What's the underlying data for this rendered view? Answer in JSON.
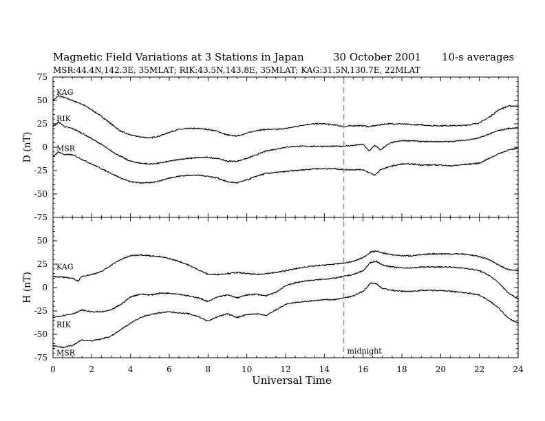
{
  "chart_data": {
    "type": "line",
    "title": "Magnetic Field Variations at 3 Stations in Japan",
    "date": "30 October 2001",
    "averaging": "10-s averages",
    "subtitle": "MSR:44.4N,142.3E, 35MLAT;  RIK:43.5N,143.8E, 35MLAT;  KAG:31.5N,130.7E, 22MLAT",
    "xlabel": "Universal Time",
    "xlim": [
      0,
      24
    ],
    "x_ticks": [
      0,
      2,
      4,
      6,
      8,
      10,
      12,
      14,
      16,
      18,
      20,
      22,
      24
    ],
    "midnight_line": {
      "x": 15,
      "label": "midnight"
    },
    "panels": [
      {
        "id": "D",
        "ylabel": "D (nT)",
        "ylim": [
          -75,
          75
        ],
        "y_ticks": [
          75,
          50,
          25,
          0,
          -25,
          -50,
          -75
        ],
        "series": [
          {
            "name": "KAG",
            "x": [
              0,
              0.3,
              0.6,
              1,
              1.5,
              2,
              2.5,
              3,
              3.5,
              4,
              4.5,
              5,
              5.5,
              6,
              6.5,
              7,
              7.5,
              8,
              8.5,
              9,
              9.5,
              10,
              10.5,
              11,
              11.5,
              12,
              12.5,
              13,
              13.5,
              14,
              14.5,
              15,
              15.5,
              16,
              16.3,
              16.6,
              16.9,
              17.2,
              17.5,
              18,
              18.5,
              19,
              19.5,
              20,
              20.5,
              21,
              21.5,
              22,
              22.5,
              23,
              23.5,
              24
            ],
            "y": [
              50,
              55,
              53,
              50,
              46,
              40,
              33,
              25,
              17,
              13,
              11,
              10,
              12,
              16,
              19,
              20,
              20,
              19,
              17,
              13,
              12,
              15,
              18,
              19,
              19,
              20,
              22,
              24,
              25,
              25,
              24,
              22,
              23,
              23,
              22,
              23,
              24,
              25,
              25,
              25,
              24,
              24,
              23,
              23,
              23,
              23,
              24,
              26,
              32,
              40,
              44,
              44
            ]
          },
          {
            "name": "RIK",
            "x": [
              0,
              0.3,
              0.6,
              1,
              1.5,
              2,
              2.5,
              3,
              3.5,
              4,
              4.5,
              5,
              5.5,
              6,
              6.5,
              7,
              7.5,
              8,
              8.5,
              9,
              9.5,
              10,
              10.5,
              11,
              11.5,
              12,
              12.5,
              13,
              13.5,
              14,
              14.5,
              15,
              15.5,
              16,
              16.3,
              16.6,
              16.9,
              17.2,
              17.5,
              18,
              18.5,
              19,
              19.5,
              20,
              20.5,
              21,
              21.5,
              22,
              22.5,
              23,
              23.5,
              24
            ],
            "y": [
              22,
              27,
              22,
              20,
              15,
              9,
              3,
              -4,
              -10,
              -15,
              -17,
              -18,
              -17,
              -15,
              -13,
              -12,
              -11,
              -11,
              -12,
              -15,
              -15,
              -12,
              -8,
              -4,
              -2,
              0,
              1,
              1,
              1,
              1,
              1,
              1,
              2,
              3,
              -4,
              2,
              -3,
              2,
              5,
              7,
              7,
              6,
              6,
              6,
              6,
              7,
              8,
              10,
              14,
              18,
              20,
              21
            ]
          },
          {
            "name": "MSR",
            "x": [
              0,
              0.3,
              0.6,
              1,
              1.5,
              2,
              2.5,
              3,
              3.5,
              4,
              4.5,
              5,
              5.5,
              6,
              6.5,
              7,
              7.5,
              8,
              8.5,
              9,
              9.5,
              10,
              10.5,
              11,
              11.5,
              12,
              12.5,
              13,
              13.5,
              14,
              14.5,
              15,
              15.5,
              16,
              16.3,
              16.6,
              16.9,
              17.2,
              17.5,
              18,
              18.5,
              19,
              19.5,
              20,
              20.5,
              21,
              21.5,
              22,
              22.5,
              23,
              23.5,
              24
            ],
            "y": [
              -10,
              -5,
              -8,
              -8,
              -13,
              -18,
              -23,
              -28,
              -33,
              -37,
              -38,
              -38,
              -36,
              -33,
              -31,
              -30,
              -30,
              -31,
              -33,
              -37,
              -38,
              -35,
              -31,
              -28,
              -27,
              -26,
              -25,
              -24,
              -23,
              -23,
              -23,
              -24,
              -24,
              -24,
              -27,
              -30,
              -24,
              -22,
              -20,
              -18,
              -18,
              -19,
              -19,
              -19,
              -20,
              -19,
              -18,
              -17,
              -12,
              -7,
              -3,
              -1
            ]
          }
        ]
      },
      {
        "id": "H",
        "ylabel": "H (nT)",
        "ylim": [
          -75,
          75
        ],
        "y_ticks": [
          75,
          50,
          25,
          0,
          -25,
          -50,
          -75
        ],
        "series": [
          {
            "name": "KAG",
            "x": [
              0,
              0.5,
              1,
              1.3,
              1.5,
              2,
              2.5,
              3,
              3.5,
              4,
              4.5,
              5,
              5.5,
              6,
              6.5,
              7,
              7.5,
              8,
              8.5,
              9,
              9.5,
              10,
              10.5,
              11,
              11.5,
              12,
              12.5,
              13,
              13.5,
              14,
              14.5,
              15,
              15.5,
              16,
              16.4,
              16.7,
              17,
              17.5,
              18,
              18.5,
              19,
              19.5,
              20,
              20.5,
              21,
              21.5,
              22,
              22.5,
              23,
              23.5,
              24
            ],
            "y": [
              12,
              11,
              10,
              7,
              12,
              14,
              17,
              24,
              30,
              34,
              35,
              34,
              33,
              31,
              28,
              24,
              19,
              14,
              14,
              15,
              16,
              15,
              14,
              15,
              16,
              18,
              20,
              22,
              23,
              24,
              25,
              26,
              28,
              32,
              38,
              39,
              37,
              35,
              34,
              34,
              35,
              36,
              36,
              36,
              36,
              35,
              33,
              30,
              24,
              19,
              18
            ]
          },
          {
            "name": "RIK",
            "x": [
              0,
              0.5,
              1,
              1.3,
              1.5,
              2,
              2.5,
              3,
              3.5,
              4,
              4.5,
              5,
              5.5,
              6,
              6.5,
              7,
              7.5,
              8,
              8.5,
              9,
              9.5,
              10,
              10.5,
              11,
              11.5,
              12,
              12.5,
              13,
              13.5,
              14,
              14.5,
              15,
              15.5,
              16,
              16.4,
              16.7,
              17,
              17.5,
              18,
              18.5,
              19,
              19.5,
              20,
              20.5,
              21,
              21.5,
              22,
              22.5,
              23,
              23.5,
              24
            ],
            "y": [
              -32,
              -30,
              -28,
              -26,
              -24,
              -26,
              -26,
              -24,
              -18,
              -10,
              -7,
              -8,
              -6,
              -6,
              -7,
              -9,
              -11,
              -15,
              -10,
              -8,
              -11,
              -8,
              -7,
              -9,
              -5,
              2,
              5,
              7,
              8,
              9,
              10,
              12,
              14,
              18,
              27,
              28,
              24,
              22,
              21,
              21,
              22,
              22,
              22,
              22,
              21,
              20,
              18,
              13,
              5,
              -6,
              -12
            ]
          },
          {
            "name": "MSR",
            "x": [
              0,
              0.5,
              1,
              1.3,
              1.5,
              2,
              2.5,
              3,
              3.5,
              4,
              4.5,
              5,
              5.5,
              6,
              6.5,
              7,
              7.5,
              8,
              8.5,
              9,
              9.5,
              10,
              10.5,
              11,
              11.5,
              12,
              12.5,
              13,
              13.5,
              14,
              14.5,
              15,
              15.5,
              16,
              16.4,
              16.7,
              17,
              17.5,
              18,
              18.5,
              19,
              19.5,
              20,
              20.5,
              21,
              21.5,
              22,
              22.5,
              23,
              23.5,
              24
            ],
            "y": [
              -62,
              -64,
              -62,
              -58,
              -56,
              -57,
              -55,
              -52,
              -45,
              -38,
              -32,
              -29,
              -27,
              -26,
              -27,
              -28,
              -31,
              -36,
              -31,
              -28,
              -32,
              -29,
              -28,
              -30,
              -24,
              -18,
              -16,
              -15,
              -14,
              -13,
              -13,
              -11,
              -9,
              -4,
              5,
              4,
              -1,
              -3,
              -4,
              -4,
              -3,
              -3,
              -3,
              -4,
              -5,
              -6,
              -8,
              -14,
              -22,
              -33,
              -38
            ]
          }
        ]
      }
    ],
    "station_label_positions": "left of each trace",
    "grid": false
  }
}
